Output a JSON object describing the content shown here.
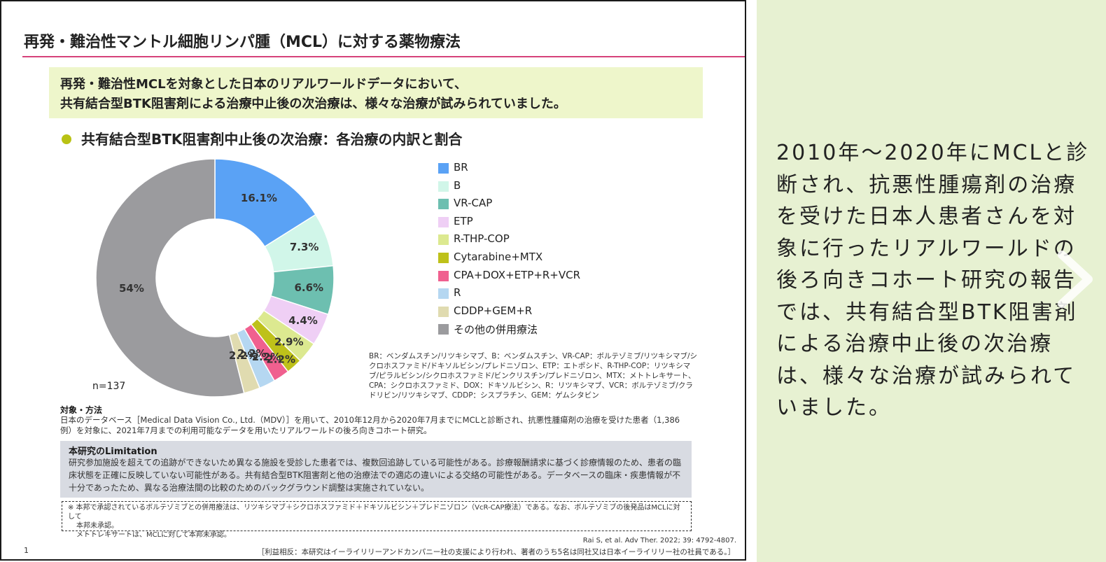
{
  "slide": {
    "title": "再発・難治性マントル細胞リンパ腫（MCL）に対する薬物療法",
    "callout": {
      "line1": "再発・難治性MCLを対象とした日本のリアルワールドデータにおいて、",
      "line2": "共有結合型BTK阻害剤による治療中止後の次治療は、様々な治療が試みられていました。"
    },
    "section_title": "共有結合型BTK阻害剤中止後の次治療：各治療の内訳と割合",
    "n_label": "n=137",
    "abbreviations": "BR：ベンダムスチン/リツキシマブ、B：ベンダムスチン、VR-CAP：ボルテゾミブ/リツキシマブ/シクロホスファミド/ドキソルビシン/プレドニゾロン、ETP：エトポシド、R-THP-COP：リツキシマブ/ピラルビシン/シクロホスファミド/ビンクリスチン/プレドニゾロン、MTX：メトトレキサート、CPA：シクロホスファミド、DOX：ドキソルビシン、R：リツキシマブ、VCR：ボルテゾミブ/クラドリビン/リツキシマブ、CDDP：シスプラチン、GEM：ゲムシタビン",
    "methods_title": "対象・方法",
    "methods_text": "日本のデータベース［Medical Data Vision Co., Ltd.（MDV）］を用いて、2010年12月から2020年7月までにMCLと診断され、抗悪性腫瘍剤の治療を受けた患者（1,386例）を対象に、2021年7月までの利用可能なデータを用いたリアルワールドの後ろ向きコホート研究。",
    "limitation_title": "本研究のLimitation",
    "limitation_text": "研究参加施設を超えての追跡ができないため異なる施設を受診した患者では、複数回追跡している可能性がある。診療報酬請求に基づく診療情報のため、患者の臨床状態を正確に反映していない可能性がある。共有結合型BTK阻害剤と他の治療法での適応の違いによる交絡の可能性がある。データベースの臨床・疾患情報が不十分であったため、異なる治療法間の比較のためのバックグラウンド調整は実施されていない。",
    "footnote_line1": "※ 本邦で承認されているボルテゾミブとの併用療法は、リツキシマブ＋シクロホスファミド＋ドキソルビシン＋プレドニゾロン（VcR-CAP療法）である。なお、ボルテゾミブの後発品はMCLに対して",
    "footnote_line2": "本邦未承認。",
    "footnote_line3": "メトトレキサートは、MCLに対して本邦未承認。",
    "citation": "Rai S, et al. Adv Ther. 2022; 39: 4792-4807.",
    "conflict": "［利益相反：本研究はイーライリリーアンドカンパニー社の支援により行われ、著者のうち5名は同社又は日本イーライリリー社の社員である。］",
    "page_number": "1"
  },
  "chart_data": {
    "type": "pie",
    "donut": true,
    "categories": [
      "BR",
      "B",
      "VR-CAP",
      "ETP",
      "R-THP-COP",
      "Cytarabine+MTX",
      "CPA+DOX+ETP+R+VCR",
      "R",
      "CDDP+GEM+R",
      "その他の併用療法"
    ],
    "values": [
      16.1,
      7.3,
      6.6,
      4.4,
      2.9,
      2.2,
      2.2,
      2.2,
      2.2,
      54
    ],
    "labels": [
      "16.1%",
      "7.3%",
      "6.6%",
      "4.4%",
      "2.9%",
      "2.2%",
      "2.2%",
      "2.2%",
      "2.2%",
      "54%"
    ],
    "colors": [
      "#5aa2f5",
      "#d1f6e9",
      "#6dbfb0",
      "#efcff5",
      "#dce990",
      "#bec11a",
      "#f0608f",
      "#b5d7f1",
      "#e0dbb0",
      "#9b9b9e"
    ],
    "legend": "right"
  },
  "panel": {
    "text": "2010年～2020年にMCLと診断され、抗悪性腫瘍剤の治療を受けた日本人患者さんを対象に行ったリアルワールドの後ろ向きコホート研究の報告では、共有結合型BTK阻害剤による治療中止後の次治療は、様々な治療が試みられていました。"
  }
}
